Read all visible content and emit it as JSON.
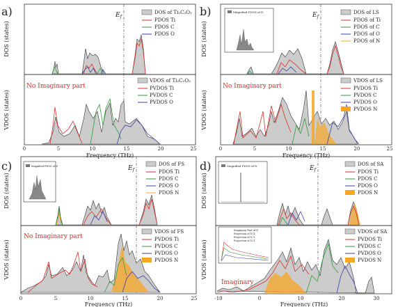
{
  "panel_labels": [
    "a)",
    "b)",
    "c)",
    "d)"
  ],
  "fermi_label": "E",
  "fermi_sub": "f",
  "y_top": "DOS (states)",
  "y_bottom": "VDOS (states)",
  "x_label": "Frequency (THz)",
  "no_imag": "No Imaginary part",
  "imaginary": "Imaginary",
  "inset_label": "Magnified PDOS of N",
  "inset_d2_lines": [
    "Imaginary Part of N",
    "Projection of N X",
    "Projection of N Y",
    "Projection of N Z"
  ],
  "colors": {
    "total": "#cccccc",
    "ti": "#d9302b",
    "c": "#2e9a3a",
    "o": "#3b3fa8",
    "n": "#f5a623",
    "dash": "#555555"
  },
  "legends": {
    "a_top": [
      "DOS of Ti₂C₂O₂",
      "PDOS Ti",
      "PDOS C",
      "PDOS O"
    ],
    "a_bot": [
      "VDOS of Ti₂C₂O₂",
      "PVDOS Ti",
      "PVDOS C",
      "PVDOS O"
    ],
    "b_top": [
      "DOS of LS",
      "PDOS of Ti",
      "PDOS of C",
      "PDOS of O",
      "PDOS of N"
    ],
    "b_bot": [
      "VDOS of LS",
      "PVDOS Ti",
      "PVDOS C",
      "PVDOS O",
      "PVDOS N"
    ],
    "c_top": [
      "DOS of FS",
      "PDOS Ti",
      "PDOS C",
      "PDOS O",
      "PDOS N"
    ],
    "c_bot": [
      "VDOS of FS",
      "PVDOS Ti",
      "PVDOS C",
      "PVDOS O",
      "PVDOS N"
    ],
    "d_top": [
      "DOS of SA",
      "PDOS Ti",
      "PDOS C",
      "PDOS O",
      "PDOS N"
    ],
    "d_bot": [
      "VDOS of SA",
      "PVDOS Ti",
      "PVDOS C",
      "PVDOS O",
      "PVDOS N"
    ]
  },
  "chart_data": [
    {
      "panel": "a",
      "type": "area",
      "xlabel": "Frequency (THz)",
      "xticks": [
        0,
        5,
        10,
        15,
        20,
        25
      ],
      "xlim": [
        0,
        25
      ],
      "fermi_x": 15,
      "series": [
        {
          "name": "VDOS of Ti₂C₂O₂",
          "x": [
            4,
            5,
            6,
            8,
            10,
            11,
            12,
            13,
            14,
            15,
            16,
            17,
            19,
            21,
            23
          ],
          "y": [
            0,
            0.6,
            0.25,
            0.35,
            0.55,
            0.75,
            0.45,
            0.55,
            0.65,
            0.95,
            0.5,
            0.4,
            0.35,
            0.2,
            0
          ]
        }
      ]
    },
    {
      "panel": "b",
      "type": "area",
      "xlabel": "Frequency (THz)",
      "xticks": [
        0,
        5,
        10,
        15,
        20,
        25
      ],
      "xlim": [
        0,
        25
      ],
      "fermi_x": 15,
      "series": [
        {
          "name": "VDOS of LS",
          "x": [
            2,
            3,
            5,
            7,
            9,
            10,
            11,
            12,
            13,
            14,
            15,
            16,
            17,
            18,
            19,
            20,
            21
          ],
          "y": [
            0,
            0.3,
            0.35,
            0.3,
            0.45,
            0.7,
            0.85,
            0.65,
            0.55,
            0.95,
            0.6,
            0.5,
            0.45,
            0.55,
            0.4,
            0.3,
            0
          ]
        }
      ]
    },
    {
      "panel": "c",
      "type": "area",
      "xlabel": "Frequency (THz)",
      "xticks": [
        0,
        5,
        10,
        15,
        20,
        25
      ],
      "xlim": [
        0,
        25
      ],
      "fermi_x": 16.5,
      "series": [
        {
          "name": "VDOS of FS",
          "x": [
            0,
            2,
            4,
            5,
            6,
            8,
            10,
            11,
            12,
            14,
            15,
            16,
            17,
            18,
            19,
            20,
            21
          ],
          "y": [
            0.05,
            0.2,
            0.3,
            0.45,
            0.35,
            0.5,
            0.6,
            0.4,
            0.3,
            0.5,
            1,
            0.9,
            0.7,
            0.5,
            0.4,
            0.3,
            0
          ]
        }
      ]
    },
    {
      "panel": "d",
      "type": "area",
      "xlabel": "Frequency (THz)",
      "xticks": [
        -10,
        0,
        10,
        20,
        30
      ],
      "xlim": [
        -10,
        33
      ],
      "fermi_x": 7,
      "series": [
        {
          "name": "VDOS of SA",
          "x": [
            -10,
            -7,
            -5,
            0,
            2,
            4,
            6,
            8,
            10,
            12,
            14,
            16,
            18,
            20,
            22,
            29,
            30,
            31
          ],
          "y": [
            0.1,
            0.08,
            0.05,
            0.15,
            0.3,
            0.45,
            0.55,
            0.6,
            0.5,
            0.8,
            0.65,
            0.5,
            0.4,
            0.45,
            0,
            0,
            0.2,
            0
          ]
        }
      ]
    }
  ]
}
